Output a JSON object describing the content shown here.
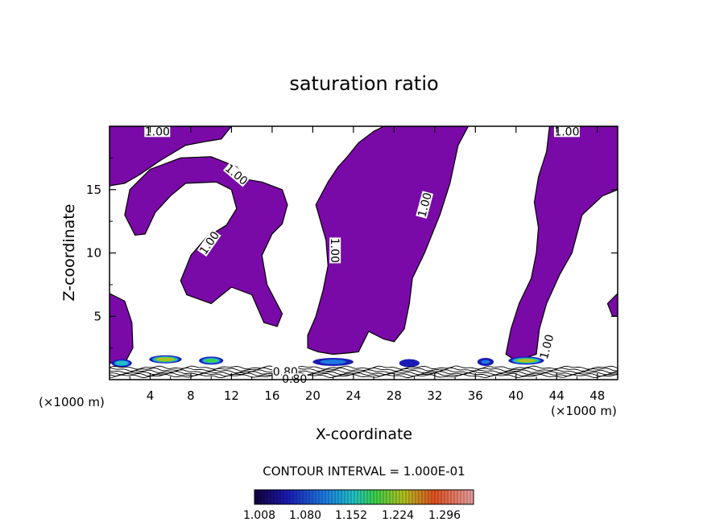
{
  "chart_data": {
    "type": "heatmap",
    "title": "saturation ratio",
    "xlabel": "X-coordinate",
    "ylabel": "Z-coordinate",
    "x_unit_left": "(×1000 m)",
    "x_unit_right": "(×1000 m)",
    "xlim": [
      0,
      50
    ],
    "ylim": [
      0,
      20
    ],
    "x_ticks": [
      4,
      8,
      12,
      16,
      20,
      24,
      28,
      32,
      36,
      40,
      44,
      48
    ],
    "y_ticks": [
      5,
      10,
      15
    ],
    "contour_interval_label": "CONTOUR INTERVAL = 1.000E-01",
    "contour_labels": [
      {
        "text": "1.00",
        "x": 4.7,
        "y": 19.6,
        "angle": 0
      },
      {
        "text": "1.00",
        "x": 12.5,
        "y": 16.2,
        "angle": 40
      },
      {
        "text": "1.00",
        "x": 9.8,
        "y": 10.8,
        "angle": -55
      },
      {
        "text": "1.00",
        "x": 22.2,
        "y": 10.2,
        "angle": 90
      },
      {
        "text": "1.00",
        "x": 31.0,
        "y": 13.8,
        "angle": -75
      },
      {
        "text": "1.00",
        "x": 45.0,
        "y": 19.6,
        "angle": 0
      },
      {
        "text": "1.00",
        "x": 43.0,
        "y": 2.6,
        "angle": -75
      },
      {
        "text": "0.80",
        "x": 17.3,
        "y": 0.65,
        "angle": 0
      },
      {
        "text": "0.80",
        "x": 18.2,
        "y": 0.05,
        "angle": 0
      }
    ],
    "colorbar": {
      "tick_labels": [
        "1.008",
        "1.080",
        "1.152",
        "1.224",
        "1.296"
      ],
      "tick_values": [
        1.008,
        1.08,
        1.152,
        1.224,
        1.296
      ],
      "range": [
        1.0,
        1.32
      ]
    },
    "supersaturated_regions_fill": "#7a0aa8",
    "regions": [
      {
        "name": "upper-left plume",
        "outline": [
          [
            0,
            20
          ],
          [
            0,
            15.3
          ],
          [
            1.5,
            15.5
          ],
          [
            3,
            16.2
          ],
          [
            5,
            17.3
          ],
          [
            7.5,
            18.5
          ],
          [
            9.5,
            18.8
          ],
          [
            11,
            19
          ],
          [
            12,
            20
          ]
        ]
      },
      {
        "name": "left-center arch",
        "outline": [
          [
            1.5,
            13
          ],
          [
            2,
            15
          ],
          [
            4,
            16.6
          ],
          [
            7,
            17.5
          ],
          [
            10,
            17.6
          ],
          [
            12.5,
            16.8
          ],
          [
            13.5,
            15.8
          ],
          [
            15,
            15.6
          ],
          [
            17,
            15
          ],
          [
            17.5,
            13.8
          ],
          [
            17,
            12.3
          ],
          [
            16,
            11.5
          ],
          [
            15,
            9.8
          ],
          [
            15.5,
            7.5
          ],
          [
            17,
            5.2
          ],
          [
            16.5,
            4.2
          ],
          [
            15.2,
            4.5
          ],
          [
            14,
            6.7
          ],
          [
            12,
            7.3
          ],
          [
            10,
            6
          ],
          [
            7.6,
            6.7
          ],
          [
            7,
            7.8
          ],
          [
            8,
            9.8
          ],
          [
            9.5,
            11.2
          ],
          [
            11.5,
            12.2
          ],
          [
            12.5,
            13.5
          ],
          [
            12,
            15
          ],
          [
            10.5,
            15.6
          ],
          [
            7.5,
            15.5
          ],
          [
            6,
            14.5
          ],
          [
            4.5,
            13.2
          ],
          [
            3.5,
            11.5
          ],
          [
            2.5,
            11.4
          ]
        ]
      },
      {
        "name": "central column",
        "outline": [
          [
            20.3,
            13.8
          ],
          [
            21.5,
            15.6
          ],
          [
            22.5,
            16.8
          ],
          [
            23.3,
            17.5
          ],
          [
            24.5,
            18.7
          ],
          [
            26,
            19.6
          ],
          [
            27,
            20
          ],
          [
            35.3,
            20
          ],
          [
            34.3,
            18.5
          ],
          [
            33.5,
            15.5
          ],
          [
            32.5,
            13
          ],
          [
            31,
            10
          ],
          [
            29.8,
            8
          ],
          [
            29.5,
            6
          ],
          [
            29,
            4
          ],
          [
            28,
            3
          ],
          [
            27,
            3.2
          ],
          [
            25.5,
            3.8
          ],
          [
            24.5,
            2.2
          ],
          [
            23.5,
            2.1
          ],
          [
            22,
            2
          ],
          [
            20.5,
            2.2
          ],
          [
            19.5,
            2.5
          ],
          [
            19.5,
            3.5
          ],
          [
            20.3,
            5
          ],
          [
            21,
            7
          ],
          [
            21.5,
            9
          ],
          [
            21.3,
            11
          ]
        ]
      },
      {
        "name": "right column",
        "outline": [
          [
            43.3,
            20
          ],
          [
            50,
            20
          ],
          [
            50,
            15
          ],
          [
            48.5,
            14.5
          ],
          [
            46.5,
            13
          ],
          [
            45.5,
            10
          ],
          [
            44.3,
            8.3
          ],
          [
            43,
            6
          ],
          [
            42.3,
            4
          ],
          [
            42,
            2
          ],
          [
            40,
            1.5
          ],
          [
            39,
            2
          ],
          [
            39.5,
            4
          ],
          [
            40.3,
            6
          ],
          [
            41.5,
            8
          ],
          [
            42,
            10
          ],
          [
            42.2,
            12
          ],
          [
            41.8,
            14
          ],
          [
            42.2,
            16
          ],
          [
            43,
            18
          ]
        ]
      },
      {
        "name": "left bottom lobe",
        "outline": [
          [
            0,
            6.8
          ],
          [
            1.5,
            6.2
          ],
          [
            2.2,
            4.5
          ],
          [
            2.3,
            2.5
          ],
          [
            1.5,
            1.3
          ],
          [
            0,
            1.3
          ]
        ]
      },
      {
        "name": "right edge lobe",
        "outline": [
          [
            50,
            6.8
          ],
          [
            49,
            6
          ],
          [
            49.5,
            5
          ],
          [
            50,
            5
          ]
        ]
      }
    ],
    "cloud_cores": [
      {
        "x": 1.2,
        "z": 1.3,
        "width": 2.0,
        "peak": 1.15
      },
      {
        "x": 5.5,
        "z": 1.6,
        "width": 3.2,
        "peak": 1.22
      },
      {
        "x": 10.0,
        "z": 1.5,
        "width": 2.4,
        "peak": 1.16
      },
      {
        "x": 22.0,
        "z": 1.4,
        "width": 4.0,
        "peak": 1.1
      },
      {
        "x": 29.5,
        "z": 1.3,
        "width": 2.0,
        "peak": 1.07
      },
      {
        "x": 37.0,
        "z": 1.4,
        "width": 1.6,
        "peak": 1.08
      },
      {
        "x": 41.0,
        "z": 1.5,
        "width": 3.5,
        "peak": 1.2
      }
    ]
  }
}
